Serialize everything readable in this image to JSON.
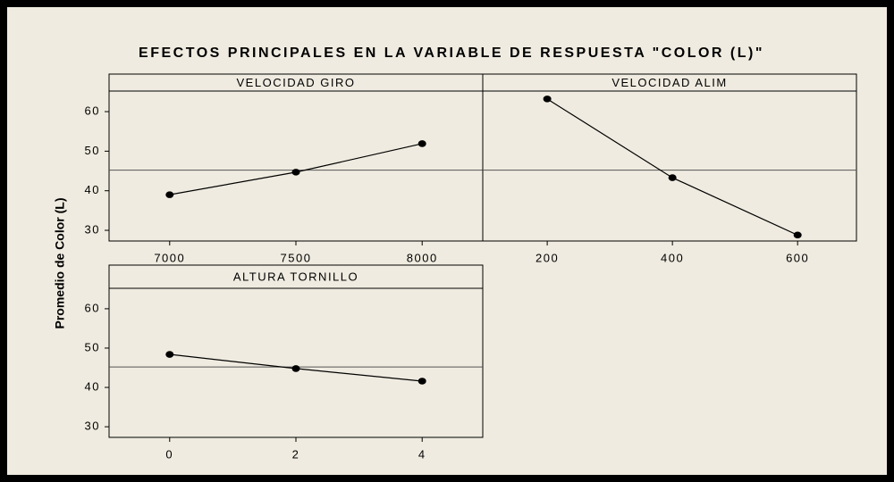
{
  "title": "EFECTOS PRINCIPALES EN LA VARIABLE DE RESPUESTA \"COLOR (L)\"",
  "y_label": "Promedio de Color (L)",
  "chart_data": [
    {
      "type": "line",
      "title": "VELOCIDAD GIRO",
      "x": [
        7000,
        7500,
        8000
      ],
      "values": [
        39,
        44.7,
        51.9
      ],
      "xlim": [
        6760,
        8240
      ],
      "xticks": [
        7000,
        7500,
        8000
      ],
      "ylim": [
        27.3,
        65.2
      ],
      "yticks": [
        30,
        40,
        50,
        60
      ],
      "mean": 45.2,
      "color": "#000000"
    },
    {
      "type": "line",
      "title": "VELOCIDAD ALIM",
      "x": [
        200,
        400,
        600
      ],
      "values": [
        63.2,
        43.3,
        28.8
      ],
      "xlim": [
        97,
        694
      ],
      "xticks": [
        200,
        400,
        600
      ],
      "ylim": [
        27.3,
        65.2
      ],
      "yticks": [
        30,
        40,
        50,
        60
      ],
      "mean": 45.2,
      "color": "#000000"
    },
    {
      "type": "line",
      "title": "ALTURA TORNILLO",
      "x": [
        0,
        2,
        4
      ],
      "values": [
        48.4,
        44.8,
        41.6
      ],
      "xlim": [
        -0.96,
        4.96
      ],
      "xticks": [
        0,
        2,
        4
      ],
      "ylim": [
        27.3,
        65.2
      ],
      "yticks": [
        30,
        40,
        50,
        60
      ],
      "mean": 45.2,
      "color": "#000000"
    }
  ]
}
